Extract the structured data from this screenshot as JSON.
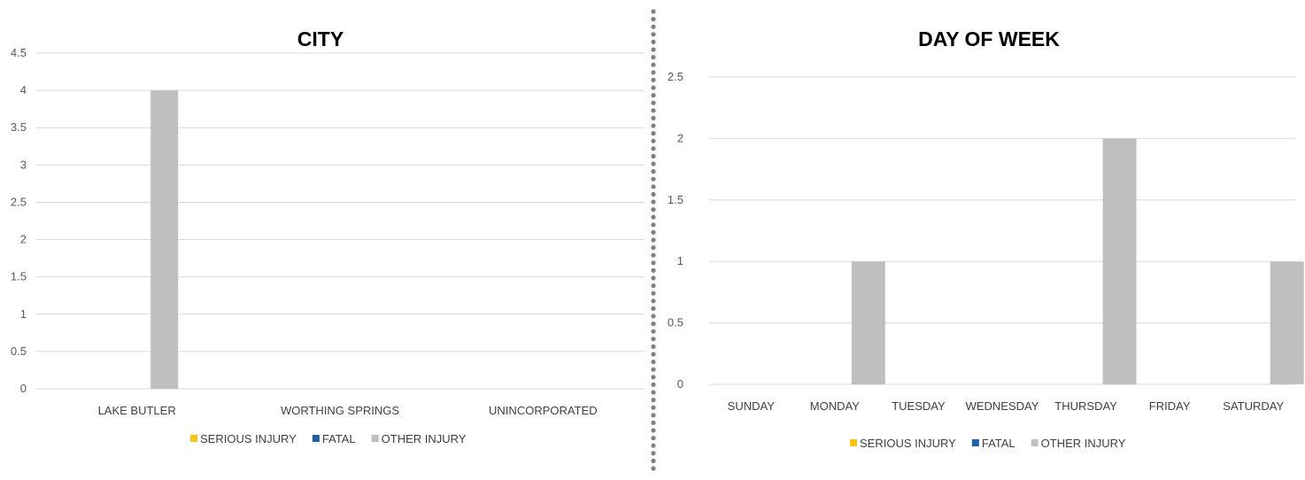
{
  "colors": {
    "serious_injury": "#F5C518",
    "fatal": "#1F5FA6",
    "other_injury": "#BFBFBF",
    "gridline": "#D9D9D9",
    "divider_dots": "#7F7F7F"
  },
  "chart_data": [
    {
      "type": "bar",
      "title": "CITY",
      "categories": [
        "LAKE BUTLER",
        "WORTHING SPRINGS",
        "UNINCORPORATED"
      ],
      "series": [
        {
          "name": "SERIOUS INJURY",
          "values": [
            0,
            0,
            0
          ]
        },
        {
          "name": "FATAL",
          "values": [
            0,
            0,
            0
          ]
        },
        {
          "name": "OTHER INJURY",
          "values": [
            4,
            0,
            0
          ]
        }
      ],
      "ylim": [
        0,
        4.5
      ],
      "yticks": [
        "0",
        "0.5",
        "1",
        "1.5",
        "2",
        "2.5",
        "3",
        "3.5",
        "4",
        "4.5"
      ],
      "grid": true,
      "legend": "bottom",
      "xlabel": "",
      "ylabel": ""
    },
    {
      "type": "bar",
      "title": "DAY OF WEEK",
      "categories": [
        "SUNDAY",
        "MONDAY",
        "TUESDAY",
        "WEDNESDAY",
        "THURSDAY",
        "FRIDAY",
        "SATURDAY"
      ],
      "series": [
        {
          "name": "SERIOUS INJURY",
          "values": [
            0,
            0,
            0,
            0,
            0,
            0,
            0
          ]
        },
        {
          "name": "FATAL",
          "values": [
            0,
            0,
            0,
            0,
            0,
            0,
            0
          ]
        },
        {
          "name": "OTHER INJURY",
          "values": [
            0,
            1,
            0,
            0,
            2,
            0,
            1
          ]
        }
      ],
      "ylim": [
        0,
        2.5
      ],
      "yticks": [
        "0",
        "0.5",
        "1",
        "1.5",
        "2",
        "2.5"
      ],
      "grid": true,
      "legend": "bottom",
      "xlabel": "",
      "ylabel": ""
    }
  ]
}
